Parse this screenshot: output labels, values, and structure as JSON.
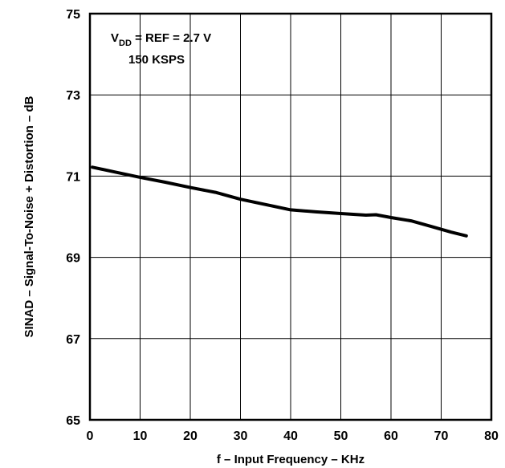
{
  "chart_data": {
    "type": "line",
    "title": "",
    "xlabel": "f – Input Frequency – KHz",
    "ylabel": "SINAD – Signal-To-Noise + Distortion – dB",
    "xlim": [
      0,
      80
    ],
    "ylim": [
      65,
      75
    ],
    "xticks": [
      0,
      10,
      20,
      30,
      40,
      50,
      60,
      70,
      80
    ],
    "yticks": [
      65,
      67,
      69,
      71,
      73,
      75
    ],
    "grid": true,
    "annotation": {
      "v_symbol": "V",
      "v_subscript": "DD",
      "v_rest": " = REF = 2.7 V",
      "line2": "150 KSPS"
    },
    "series": [
      {
        "name": "",
        "color": "#000000",
        "x": [
          0.5,
          5,
          10,
          15,
          20,
          25,
          30,
          35,
          40,
          45,
          50,
          55,
          57,
          60,
          64,
          68,
          72,
          75
        ],
        "y": [
          71.22,
          71.1,
          70.97,
          70.85,
          70.72,
          70.6,
          70.43,
          70.3,
          70.17,
          70.12,
          70.08,
          70.04,
          70.05,
          69.98,
          69.9,
          69.76,
          69.62,
          69.53
        ]
      }
    ]
  }
}
